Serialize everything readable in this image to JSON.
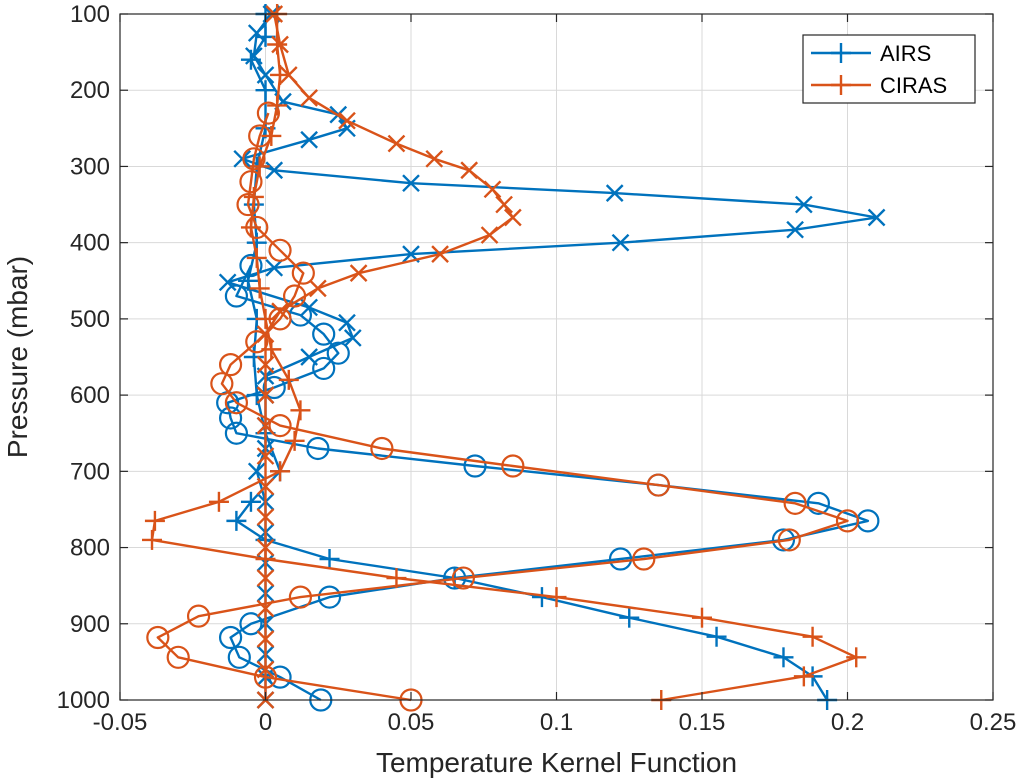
{
  "chart_data": {
    "type": "line",
    "xlabel": "Temperature Kernel Function",
    "ylabel": "Pressure (mbar)",
    "xlim": [
      -0.05,
      0.25
    ],
    "ylim": [
      100,
      1000
    ],
    "y_reversed": true,
    "grid": true,
    "legend_position": "top-right",
    "x_ticks": [
      "-0.05",
      "0",
      "0.05",
      "0.1",
      "0.15",
      "0.2",
      "0.25"
    ],
    "x_tick_values": [
      -0.05,
      0,
      0.05,
      0.1,
      0.15,
      0.2,
      0.25
    ],
    "y_ticks": [
      "100",
      "200",
      "300",
      "400",
      "500",
      "600",
      "700",
      "800",
      "900",
      "1000"
    ],
    "y_tick_values": [
      100,
      200,
      300,
      400,
      500,
      600,
      700,
      800,
      900,
      1000
    ],
    "series": [
      {
        "name": "AIRS",
        "color": "#0072BD",
        "legend_marker": "plus",
        "curves": [
          {
            "marker": "plus",
            "points": [
              [
                0.0,
                100
              ],
              [
                0.0,
                130
              ],
              [
                -0.005,
                160
              ],
              [
                0.0,
                200
              ],
              [
                0.0,
                250
              ],
              [
                -0.003,
                300
              ],
              [
                -0.004,
                350
              ],
              [
                -0.003,
                400
              ],
              [
                -0.006,
                450
              ],
              [
                -0.003,
                500
              ],
              [
                -0.004,
                550
              ],
              [
                -0.003,
                600
              ],
              [
                0.0,
                650
              ],
              [
                0.005,
                700
              ],
              [
                -0.005,
                740
              ],
              [
                -0.01,
                765
              ],
              [
                0.0,
                790
              ],
              [
                0.022,
                815
              ],
              [
                0.065,
                840
              ],
              [
                0.095,
                865
              ],
              [
                0.125,
                892
              ],
              [
                0.155,
                917
              ],
              [
                0.178,
                944
              ],
              [
                0.188,
                969
              ],
              [
                0.193,
                1000
              ]
            ]
          },
          {
            "marker": "x",
            "points": [
              [
                0.002,
                100
              ],
              [
                -0.003,
                125
              ],
              [
                -0.004,
                155
              ],
              [
                0.0,
                180
              ],
              [
                0.006,
                215
              ],
              [
                0.025,
                232
              ],
              [
                0.028,
                250
              ],
              [
                0.015,
                265
              ],
              [
                -0.008,
                290
              ],
              [
                0.003,
                305
              ],
              [
                0.05,
                322
              ],
              [
                0.12,
                335
              ],
              [
                0.185,
                350
              ],
              [
                0.21,
                367
              ],
              [
                0.182,
                383
              ],
              [
                0.122,
                400
              ],
              [
                0.05,
                415
              ],
              [
                0.003,
                433
              ],
              [
                -0.013,
                452
              ],
              [
                0.015,
                485
              ],
              [
                0.028,
                505
              ],
              [
                0.03,
                525
              ],
              [
                0.015,
                550
              ],
              [
                0.0,
                575
              ],
              [
                0.0,
                600
              ],
              [
                0.0,
                640
              ],
              [
                0.0,
                670
              ],
              [
                -0.003,
                700
              ],
              [
                0.0,
                740
              ],
              [
                0.0,
                780
              ],
              [
                0.0,
                820
              ],
              [
                0.0,
                860
              ],
              [
                0.0,
                900
              ],
              [
                0.0,
                940
              ],
              [
                0.0,
                970
              ],
              [
                0.0,
                1000
              ]
            ]
          },
          {
            "marker": "circle",
            "points": [
              [
                -0.005,
                430
              ],
              [
                -0.01,
                470
              ],
              [
                0.012,
                495
              ],
              [
                0.02,
                520
              ],
              [
                0.025,
                545
              ],
              [
                0.02,
                565
              ],
              [
                0.003,
                590
              ],
              [
                -0.013,
                610
              ],
              [
                -0.012,
                630
              ],
              [
                -0.01,
                650
              ],
              [
                0.018,
                670
              ],
              [
                0.072,
                693
              ],
              [
                0.135,
                718
              ],
              [
                0.19,
                742
              ],
              [
                0.207,
                765
              ],
              [
                0.178,
                790
              ],
              [
                0.122,
                815
              ],
              [
                0.065,
                840
              ],
              [
                0.022,
                865
              ],
              [
                -0.005,
                900
              ],
              [
                -0.012,
                918
              ],
              [
                -0.009,
                944
              ],
              [
                0.005,
                970
              ],
              [
                0.019,
                1000
              ]
            ]
          }
        ]
      },
      {
        "name": "CIRAS",
        "color": "#D95319",
        "legend_marker": "plus",
        "curves": [
          {
            "marker": "plus",
            "points": [
              [
                0.004,
                100
              ],
              [
                0.004,
                140
              ],
              [
                0.005,
                180
              ],
              [
                0.004,
                220
              ],
              [
                0.002,
                260
              ],
              [
                -0.002,
                300
              ],
              [
                -0.004,
                340
              ],
              [
                -0.005,
                380
              ],
              [
                -0.003,
                420
              ],
              [
                -0.002,
                460
              ],
              [
                0.0,
                500
              ],
              [
                0.002,
                540
              ],
              [
                0.008,
                580
              ],
              [
                0.012,
                620
              ],
              [
                0.01,
                660
              ],
              [
                0.005,
                700
              ],
              [
                -0.016,
                740
              ],
              [
                -0.038,
                765
              ],
              [
                -0.039,
                790
              ],
              [
                0.0,
                815
              ],
              [
                0.045,
                840
              ],
              [
                0.1,
                865
              ],
              [
                0.15,
                892
              ],
              [
                0.188,
                917
              ],
              [
                0.203,
                944
              ],
              [
                0.185,
                969
              ],
              [
                0.136,
                1000
              ]
            ]
          },
          {
            "marker": "x",
            "points": [
              [
                0.003,
                100
              ],
              [
                0.005,
                140
              ],
              [
                0.008,
                180
              ],
              [
                0.015,
                210
              ],
              [
                0.028,
                240
              ],
              [
                0.045,
                270
              ],
              [
                0.058,
                290
              ],
              [
                0.07,
                305
              ],
              [
                0.078,
                330
              ],
              [
                0.082,
                350
              ],
              [
                0.085,
                367
              ],
              [
                0.077,
                390
              ],
              [
                0.06,
                415
              ],
              [
                0.032,
                440
              ],
              [
                0.018,
                460
              ],
              [
                0.005,
                490
              ],
              [
                0.0,
                520
              ],
              [
                0.0,
                560
              ],
              [
                0.0,
                600
              ],
              [
                0.0,
                640
              ],
              [
                0.0,
                680
              ],
              [
                0.0,
                720
              ],
              [
                0.0,
                760
              ],
              [
                0.0,
                800
              ],
              [
                0.0,
                840
              ],
              [
                0.0,
                880
              ],
              [
                0.0,
                920
              ],
              [
                0.0,
                960
              ],
              [
                0.0,
                1000
              ]
            ]
          },
          {
            "marker": "circle",
            "points": [
              [
                0.001,
                230
              ],
              [
                -0.002,
                260
              ],
              [
                -0.004,
                290
              ],
              [
                -0.005,
                320
              ],
              [
                -0.006,
                350
              ],
              [
                -0.003,
                380
              ],
              [
                0.005,
                410
              ],
              [
                0.013,
                440
              ],
              [
                0.01,
                470
              ],
              [
                0.005,
                500
              ],
              [
                -0.003,
                530
              ],
              [
                -0.012,
                560
              ],
              [
                -0.015,
                585
              ],
              [
                -0.01,
                610
              ],
              [
                0.005,
                640
              ],
              [
                0.04,
                670
              ],
              [
                0.085,
                693
              ],
              [
                0.135,
                718
              ],
              [
                0.182,
                742
              ],
              [
                0.2,
                765
              ],
              [
                0.18,
                790
              ],
              [
                0.13,
                815
              ],
              [
                0.068,
                840
              ],
              [
                0.012,
                865
              ],
              [
                -0.023,
                890
              ],
              [
                -0.037,
                918
              ],
              [
                -0.03,
                944
              ],
              [
                0.0,
                970
              ],
              [
                0.05,
                1000
              ]
            ]
          }
        ]
      }
    ]
  }
}
